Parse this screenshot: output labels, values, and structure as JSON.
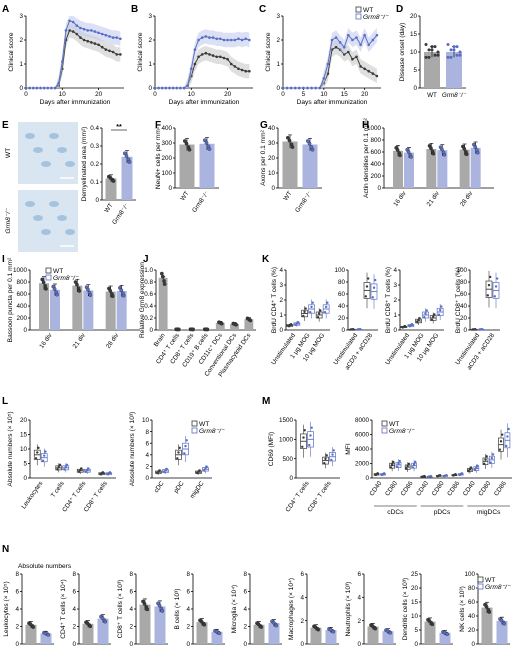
{
  "colors": {
    "wt": "#3a3a3a",
    "ko": "#5a6fc4",
    "wt_fill": "#a9a9a9",
    "ko_fill": "#aab4de",
    "wt_band": "#c9c9c9",
    "ko_band": "#c3cbee",
    "tissue": "#8fb3d6",
    "tissue_bg": "#d9e6f2"
  },
  "panel_letters": [
    "A",
    "B",
    "C",
    "D",
    "E",
    "F",
    "G",
    "H",
    "I",
    "J",
    "K",
    "L",
    "M",
    "N"
  ],
  "legend": {
    "wt": "WT",
    "ko": "Grm8⁻/⁻"
  },
  "curves": {
    "A": {
      "ylabel": "Clinical score",
      "xlabel": "Days after immunization",
      "xticks": [
        "0",
        "10",
        "20"
      ],
      "yticks": [
        "0",
        "1",
        "2",
        "3"
      ]
    },
    "B": {
      "ylabel": "Clinical score",
      "xlabel": "Days after immunization",
      "xticks": [
        "0",
        "10",
        "20"
      ],
      "yticks": [
        "0",
        "1",
        "2",
        "3"
      ]
    },
    "C": {
      "ylabel": "Clinical score",
      "xlabel": "Days after immunization",
      "xticks": [
        "0",
        "5",
        "10",
        "15",
        "20"
      ],
      "yticks": [
        "0",
        "1",
        "2",
        "3"
      ]
    }
  },
  "chart_data": [
    {
      "panel": "A",
      "type": "line",
      "xlim": [
        0,
        27
      ],
      "ylim": [
        0,
        3
      ],
      "x": [
        0,
        1,
        2,
        3,
        4,
        5,
        6,
        7,
        8,
        9,
        10,
        11,
        12,
        13,
        14,
        15,
        16,
        17,
        18,
        19,
        20,
        21,
        22,
        23,
        24,
        25,
        26
      ],
      "series": [
        {
          "name": "WT",
          "values": [
            0,
            0,
            0,
            0,
            0,
            0,
            0,
            0,
            0,
            0.1,
            0.8,
            2.0,
            2.4,
            2.35,
            2.25,
            2.1,
            2.0,
            1.95,
            1.9,
            1.85,
            1.8,
            1.7,
            1.6,
            1.55,
            1.5,
            1.4,
            1.4
          ]
        },
        {
          "name": "Grm8⁻/⁻",
          "values": [
            0,
            0,
            0,
            0,
            0,
            0,
            0,
            0,
            0,
            0.2,
            1.1,
            2.4,
            2.8,
            2.75,
            2.6,
            2.5,
            2.45,
            2.4,
            2.4,
            2.35,
            2.3,
            2.25,
            2.2,
            2.15,
            2.1,
            2.1,
            2.05
          ]
        }
      ]
    },
    {
      "panel": "B",
      "type": "line",
      "xlim": [
        0,
        27
      ],
      "ylim": [
        0,
        3
      ],
      "x": [
        0,
        1,
        2,
        3,
        4,
        5,
        6,
        7,
        8,
        9,
        10,
        11,
        12,
        13,
        14,
        15,
        16,
        17,
        18,
        19,
        20,
        21,
        22,
        23,
        24,
        25,
        26
      ],
      "series": [
        {
          "name": "WT",
          "values": [
            0,
            0,
            0,
            0,
            0,
            0,
            0,
            0,
            0,
            0.1,
            0.5,
            1.0,
            1.3,
            1.4,
            1.45,
            1.4,
            1.35,
            1.3,
            1.3,
            1.25,
            1.2,
            1.0,
            0.9,
            0.8,
            0.75,
            0.7,
            0.7
          ]
        },
        {
          "name": "Grm8⁻/⁻",
          "values": [
            0,
            0,
            0,
            0,
            0,
            0,
            0,
            0,
            0,
            0.1,
            0.8,
            1.6,
            2.0,
            2.1,
            2.15,
            2.1,
            2.1,
            2.05,
            2.05,
            2.0,
            2.0,
            2.0,
            2.0,
            2.05,
            2.0,
            2.05,
            2.0
          ]
        }
      ]
    },
    {
      "panel": "C",
      "type": "line",
      "xlim": [
        0,
        24
      ],
      "ylim": [
        0,
        3
      ],
      "x": [
        0,
        1,
        2,
        3,
        4,
        5,
        6,
        7,
        8,
        9,
        10,
        11,
        12,
        13,
        14,
        15,
        16,
        17,
        18,
        19,
        20,
        21,
        22,
        23
      ],
      "series": [
        {
          "name": "WT",
          "values": [
            0,
            0,
            0,
            0,
            0,
            0,
            0,
            0,
            0,
            0,
            0.2,
            0.6,
            1.6,
            1.7,
            1.6,
            1.4,
            1.5,
            1.2,
            1.3,
            0.9,
            0.8,
            0.7,
            0.6,
            0.5
          ]
        },
        {
          "name": "Grm8⁻/⁻",
          "values": [
            0,
            0,
            0,
            0,
            0,
            0,
            0,
            0,
            0,
            0,
            0.4,
            1.0,
            2.0,
            2.1,
            1.9,
            1.7,
            2.2,
            2.0,
            2.1,
            1.8,
            2.2,
            1.8,
            2.0,
            2.2
          ]
        }
      ]
    },
    {
      "panel": "D",
      "type": "bar",
      "ylabel": "Disease onset (day)",
      "ylim": [
        0,
        20
      ],
      "yticks": [
        "0",
        "5",
        "10",
        "15",
        "20"
      ],
      "categories": [
        "WT",
        "Grm8⁻/⁻"
      ],
      "values": [
        10,
        10
      ]
    },
    {
      "panel": "E",
      "type": "bar",
      "ylabel": "Demyelinated area (mm²)",
      "ylim": [
        0,
        0.4
      ],
      "yticks": [
        "0",
        "0.1",
        "0.2",
        "0.3",
        "0.4"
      ],
      "categories": [
        "WT",
        "Grm8⁻/⁻"
      ],
      "values": [
        0.12,
        0.24
      ],
      "annotation": "**",
      "image_labels": [
        "WT",
        "Grm8⁻/⁻"
      ]
    },
    {
      "panel": "F",
      "type": "bar",
      "ylabel": "NeuN+ cells per mm²",
      "ylim": [
        0,
        400
      ],
      "yticks": [
        "0",
        "100",
        "200",
        "300",
        "400"
      ],
      "categories": [
        "WT",
        "Grm8⁻/⁻"
      ],
      "values": [
        290,
        295
      ]
    },
    {
      "panel": "G",
      "type": "bar",
      "ylabel": "Axons per 0.1 mm²",
      "ylim": [
        0,
        40
      ],
      "yticks": [
        "0",
        "10",
        "20",
        "30",
        "40"
      ],
      "categories": [
        "WT",
        "Grm8⁻/⁻"
      ],
      "values": [
        31,
        29
      ]
    },
    {
      "panel": "H",
      "type": "bar",
      "ylabel": "Actin densities per 0.1 mm²",
      "ylim": [
        0,
        1000
      ],
      "yticks": [
        "0",
        "200",
        "400",
        "600",
        "800",
        "1000"
      ],
      "categories": [
        "16 div",
        "21 div",
        "28 div"
      ],
      "series": [
        {
          "name": "WT",
          "values": [
            620,
            650,
            640
          ]
        },
        {
          "name": "Grm8⁻/⁻",
          "values": [
            590,
            630,
            670
          ]
        }
      ]
    },
    {
      "panel": "I",
      "type": "bar",
      "ylabel": "Bassoon puncta per 0.1 mm²",
      "ylim": [
        0,
        1000
      ],
      "yticks": [
        "0",
        "200",
        "400",
        "600",
        "800",
        "1000"
      ],
      "categories": [
        "16 div",
        "21 div",
        "28 div"
      ],
      "series": [
        {
          "name": "WT",
          "values": [
            780,
            740,
            640
          ]
        },
        {
          "name": "Grm8⁻/⁻",
          "values": [
            670,
            660,
            650
          ]
        }
      ]
    },
    {
      "panel": "J",
      "type": "bar",
      "ylabel": "Relative Grm8 expression",
      "ylim": [
        0,
        1.0
      ],
      "yticks": [
        "0",
        "0.2",
        "0.4",
        "0.6",
        "0.8",
        "1.0"
      ],
      "categories": [
        "Brain",
        "CD4⁺ T cells",
        "CD8⁺ T cells",
        "CD19⁺ B cells",
        "CD11c⁺ DCs",
        "Conventional DCs",
        "Plasmacytoid DCs"
      ],
      "values": [
        0.87,
        0.01,
        0.01,
        0.01,
        0.12,
        0.1,
        0.18
      ]
    },
    {
      "panel": "K1",
      "type": "box",
      "ylabel": "BrdU CD4⁺ T cells (%)",
      "ylim": [
        0,
        4
      ],
      "yticks": [
        "0",
        "1",
        "2",
        "3",
        "4"
      ],
      "categories": [
        "Unstimulated",
        "1 µg MOG",
        "10 µg MOG"
      ],
      "series": [
        {
          "name": "WT",
          "values": [
            0.3,
            1.1,
            1.0
          ]
        },
        {
          "name": "Grm8⁻/⁻",
          "values": [
            0.4,
            1.4,
            1.4
          ]
        }
      ]
    },
    {
      "panel": "K2",
      "type": "box",
      "ylim": [
        0,
        100
      ],
      "yticks": [
        "0",
        "20",
        "40",
        "60",
        "80",
        "100"
      ],
      "categories": [
        "Unstimulated",
        "aCD3 + aCD28"
      ],
      "series": [
        {
          "name": "WT",
          "values": [
            1,
            66
          ]
        },
        {
          "name": "Grm8⁻/⁻",
          "values": [
            1,
            64
          ]
        }
      ]
    },
    {
      "panel": "K3",
      "type": "box",
      "ylabel": "BrdU CD8⁺ T cells (%)",
      "ylim": [
        0,
        4
      ],
      "yticks": [
        "0",
        "1",
        "2",
        "3",
        "4"
      ],
      "categories": [
        "Unstimulated",
        "1 µg MOG",
        "10 µg MOG"
      ],
      "series": [
        {
          "name": "WT",
          "values": [
            0.2,
            0.6,
            0.8
          ]
        },
        {
          "name": "Grm8⁻/⁻",
          "values": [
            0.3,
            1.0,
            1.2
          ]
        }
      ]
    },
    {
      "panel": "K4",
      "type": "box",
      "ylabel": "BrdU CD8⁺ T cells (%)",
      "ylim": [
        0,
        100
      ],
      "yticks": [
        "0",
        "20",
        "40",
        "60",
        "80",
        "100"
      ],
      "categories": [
        "Unstimulated",
        "aCD3 + aCD28"
      ],
      "series": [
        {
          "name": "WT",
          "values": [
            1,
            68
          ]
        },
        {
          "name": "Grm8⁻/⁻",
          "values": [
            1,
            66
          ]
        }
      ]
    },
    {
      "panel": "L1",
      "type": "box",
      "ylabel": "Absolute numbers (× 10⁵)",
      "ylim": [
        0,
        20
      ],
      "yticks": [
        "0",
        "5",
        "10",
        "15",
        "20"
      ],
      "categories": [
        "Leukocytes",
        "T cells",
        "CD4⁺ T cells",
        "CD8⁺ T cells"
      ],
      "series": [
        {
          "name": "WT",
          "values": [
            8,
            3.5,
            2.5,
            1.5
          ]
        },
        {
          "name": "Grm8⁻/⁻",
          "values": [
            7,
            3.5,
            2.5,
            1.5
          ]
        }
      ]
    },
    {
      "panel": "L2",
      "type": "box",
      "ylabel": "Absolute numbers (× 10³)",
      "ylim": [
        0,
        10
      ],
      "yticks": [
        "0",
        "2",
        "4",
        "6",
        "8",
        "10"
      ],
      "categories": [
        "cDC",
        "pDC",
        "migDC"
      ],
      "series": [
        {
          "name": "WT",
          "values": [
            1,
            4,
            1
          ]
        },
        {
          "name": "Grm8⁻/⁻",
          "values": [
            1.2,
            5,
            1.5
          ]
        }
      ]
    },
    {
      "panel": "M1",
      "type": "box",
      "ylabel": "CD69 (MFI)",
      "ylim": [
        0,
        1500
      ],
      "yticks": [
        "0",
        "500",
        "1000",
        "1500"
      ],
      "categories": [
        "CD4⁺ T cells",
        "CD8⁺ T cells"
      ],
      "series": [
        {
          "name": "WT",
          "values": [
            950,
            450
          ]
        },
        {
          "name": "Grm8⁻/⁻",
          "values": [
            1000,
            550
          ]
        }
      ]
    },
    {
      "panel": "M2",
      "type": "box",
      "ylabel": "MFI",
      "ylim": [
        0,
        8000
      ],
      "yticks": [
        "0",
        "2000",
        "4000",
        "6000",
        "8000"
      ],
      "groups": [
        "cDCs",
        "pDCs",
        "migDCs"
      ],
      "categories": [
        "CD40",
        "CD80",
        "CD86",
        "CD40",
        "CD80",
        "CD86",
        "CD40",
        "CD80",
        "CD86"
      ],
      "series": [
        {
          "name": "WT",
          "values": [
            500,
            1700,
            1500,
            200,
            300,
            400,
            1100,
            2300,
            4600
          ]
        },
        {
          "name": "Grm8⁻/⁻",
          "values": [
            500,
            1800,
            1700,
            200,
            300,
            500,
            1300,
            2500,
            5200
          ]
        }
      ]
    },
    {
      "panel": "N",
      "type": "bar",
      "title": "Absolute numbers",
      "categories": [
        "WT",
        "Grm8⁻/⁻"
      ],
      "subplots": [
        {
          "ylabel": "Leukocytes (× 10⁵)",
          "ylim": [
            0,
            8
          ],
          "yticks": [
            "0",
            "2",
            "4",
            "6",
            "8"
          ],
          "values": [
            2.2,
            1.2
          ]
        },
        {
          "ylabel": "CD4⁺ T cells (× 10⁴)",
          "ylim": [
            0,
            8
          ],
          "yticks": [
            "0",
            "2",
            "4",
            "6",
            "8"
          ],
          "values": [
            2.3,
            2.9
          ]
        },
        {
          "ylabel": "CD8⁺ T cells (× 10³)",
          "ylim": [
            0,
            8
          ],
          "yticks": [
            "0",
            "2",
            "4",
            "6",
            "8"
          ],
          "values": [
            4.5,
            4.3
          ]
        },
        {
          "ylabel": "B cells (× 10³)",
          "ylim": [
            0,
            8
          ],
          "yticks": [
            "0",
            "2",
            "4",
            "6",
            "8"
          ],
          "values": [
            2.5,
            1.4
          ]
        },
        {
          "ylabel": "Microglia (× 10⁴)",
          "ylim": [
            0,
            8
          ],
          "yticks": [
            "0",
            "2",
            "4",
            "6",
            "8"
          ],
          "values": [
            2.2,
            2.4
          ]
        },
        {
          "ylabel": "Macrophages (× 10⁴)",
          "ylim": [
            0,
            6
          ],
          "yticks": [
            "0",
            "2",
            "4",
            "6"
          ],
          "values": [
            1.4,
            1.2
          ]
        },
        {
          "ylabel": "Neutrophils (× 10³)",
          "ylim": [
            0,
            6
          ],
          "yticks": [
            "0",
            "2",
            "4",
            "6"
          ],
          "values": [
            1.5,
            1.1
          ]
        },
        {
          "ylabel": "Dendritic cells (× 10³)",
          "ylim": [
            0,
            25
          ],
          "yticks": [
            "0",
            "5",
            "10",
            "15",
            "20",
            "25"
          ],
          "values": [
            8,
            4
          ]
        },
        {
          "ylabel": "NK cells (× 10³)",
          "ylim": [
            0,
            100
          ],
          "yticks": [
            "0",
            "20",
            "40",
            "60",
            "80",
            "100"
          ],
          "values": [
            52,
            33
          ]
        }
      ]
    }
  ]
}
